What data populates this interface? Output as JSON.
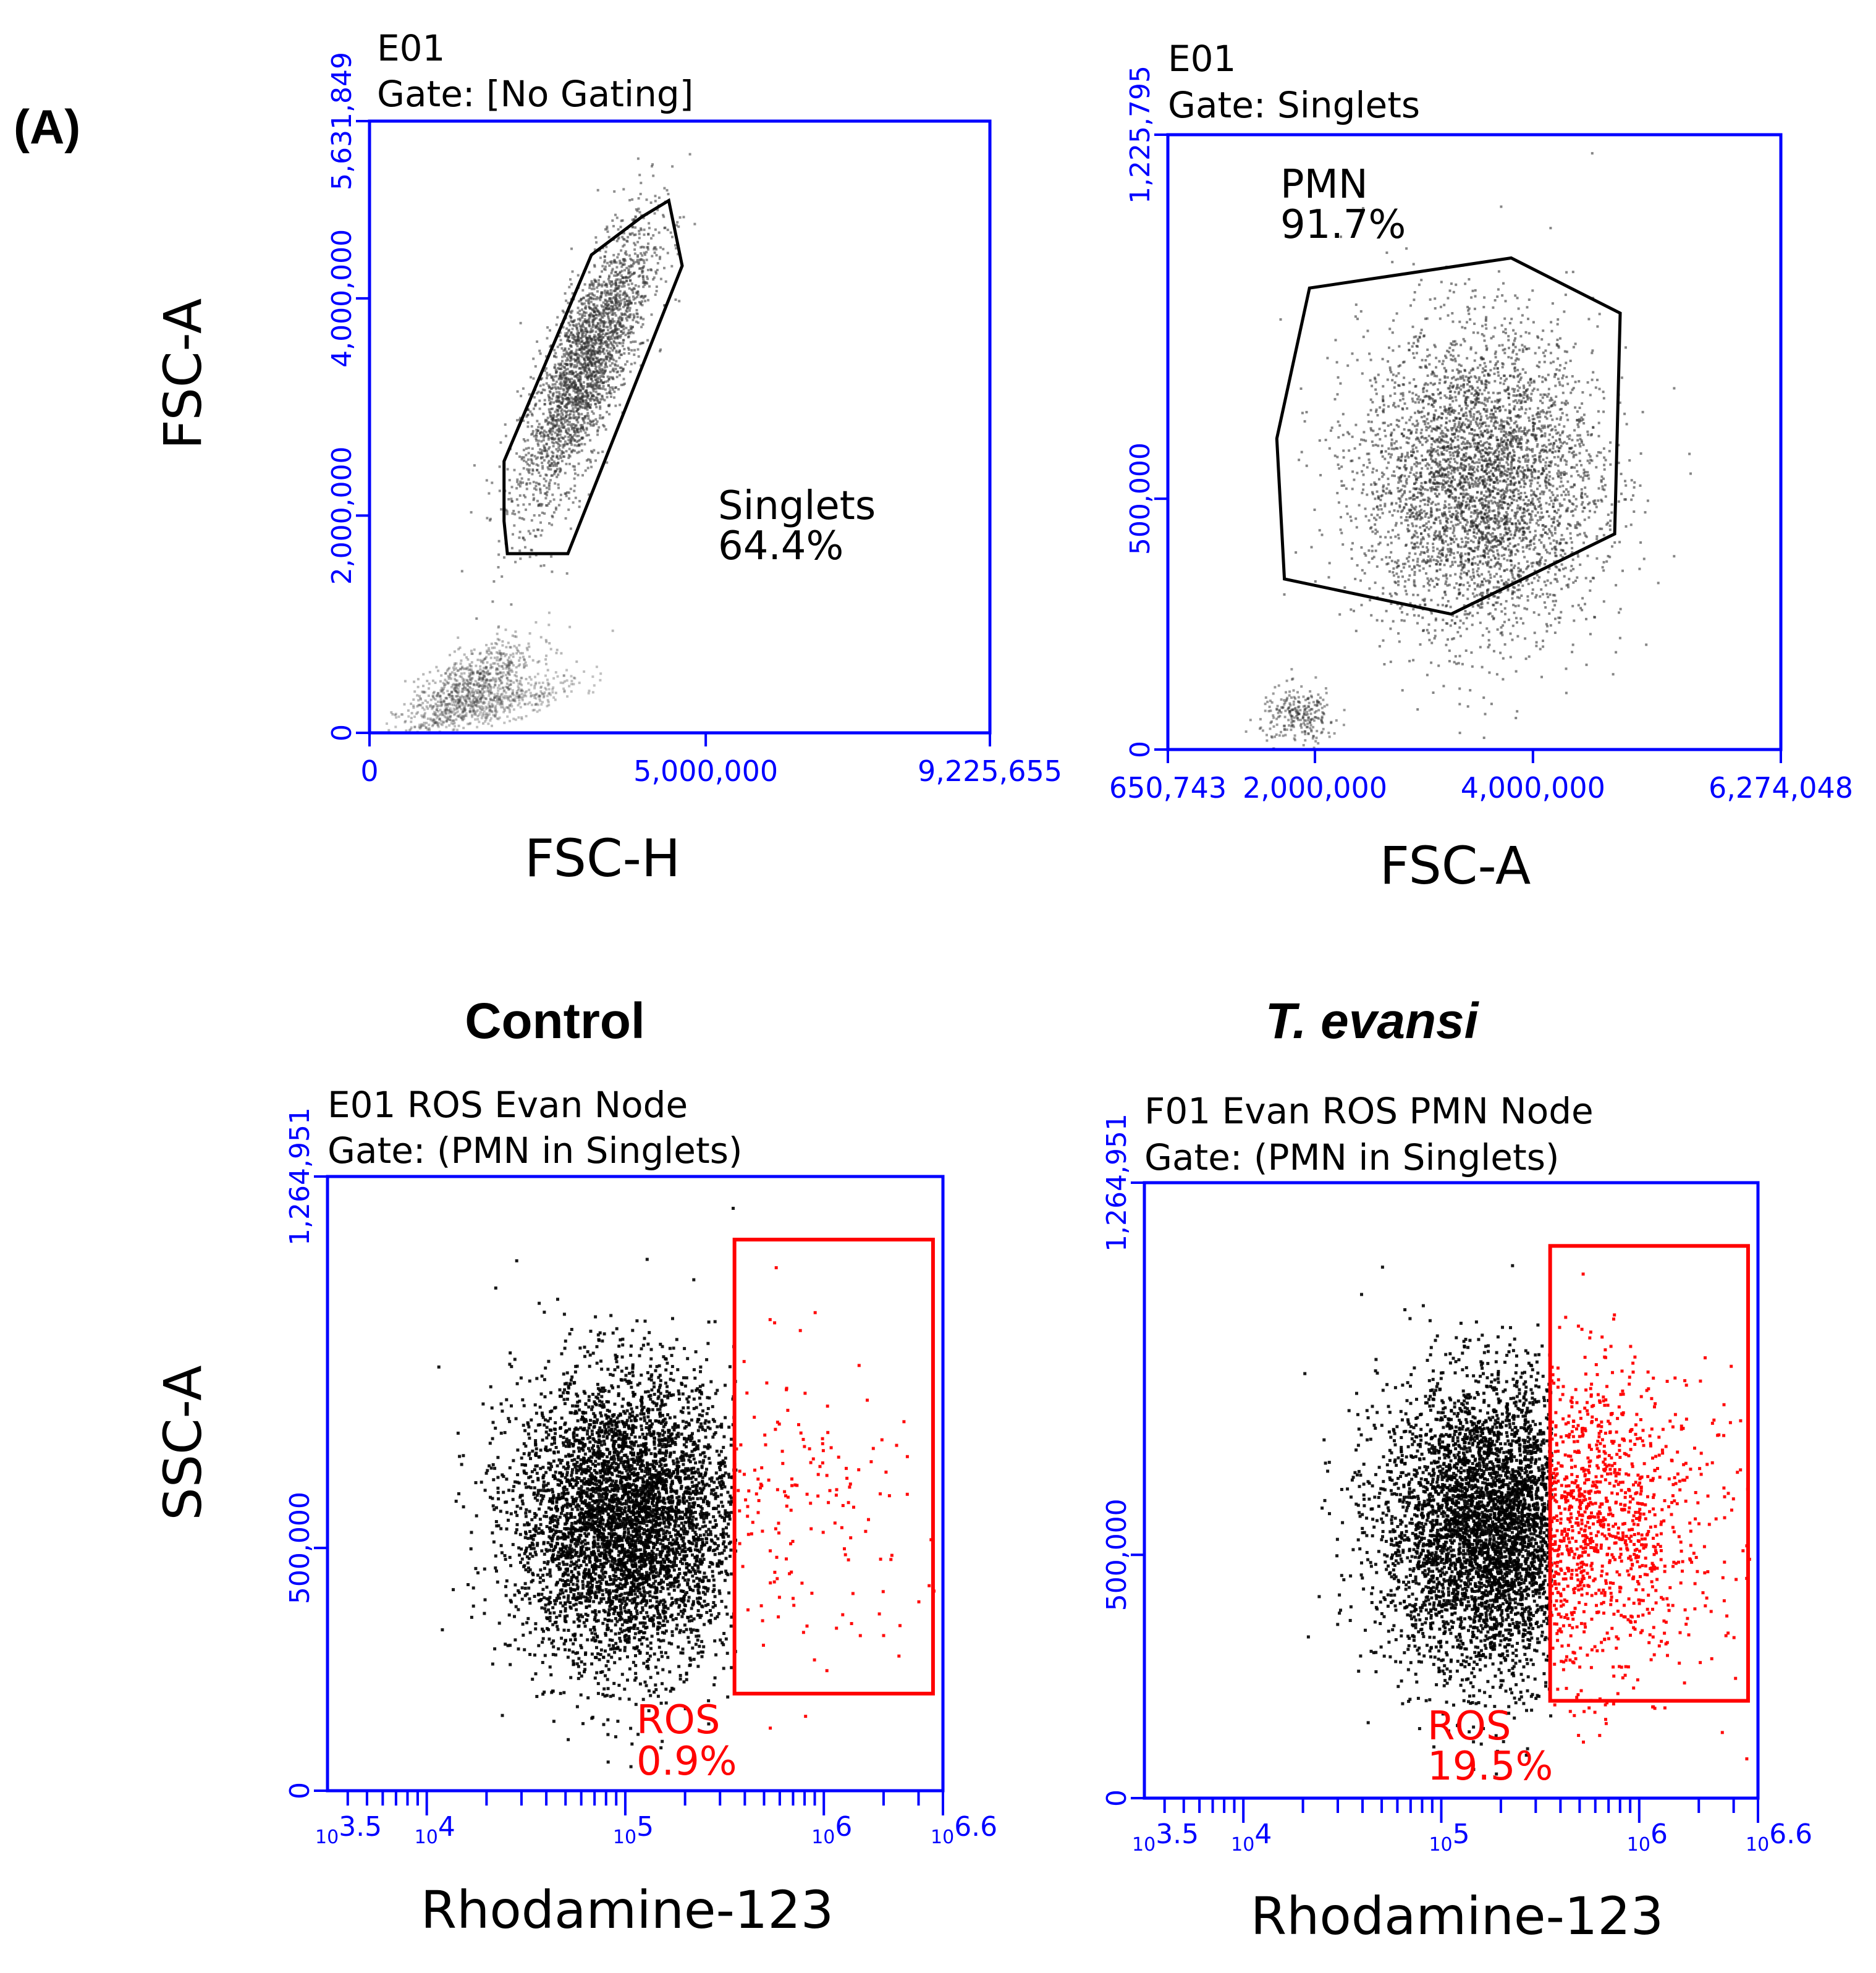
{
  "figure": {
    "panel_label": "(A)",
    "colors": {
      "axis": "#0000ff",
      "gate_black": "#000000",
      "gate_red": "#ff0000",
      "points_red": "#ff0000",
      "text": "#000000"
    }
  },
  "chart_data": [
    {
      "type": "scatter",
      "sample": "E01",
      "gate_text": "Gate: [No Gating]",
      "xlabel": "FSC-H",
      "ylabel": "FSC-A",
      "xlim": [
        0,
        9225655
      ],
      "ylim": [
        0,
        5631849
      ],
      "x_tick_labels": [
        "0",
        "5,000,000",
        "9,225,655"
      ],
      "y_tick_labels": [
        "0",
        "2,000,000",
        "4,000,000",
        "5,631,849"
      ],
      "gate": {
        "name": "Singlets",
        "percent": "64.4%",
        "polygon": [
          [
            4450000,
            4900000
          ],
          [
            4650000,
            4300000
          ],
          [
            2950000,
            1650000
          ],
          [
            2050000,
            1650000
          ],
          [
            2000000,
            1950000
          ],
          [
            2000000,
            2500000
          ],
          [
            3300000,
            4400000
          ],
          [
            4050000,
            4750000
          ]
        ]
      },
      "populations": [
        {
          "slope": 1.05,
          "x_center": 3200000,
          "x_spread": 1400000,
          "y_noise": 400000,
          "n": 2600,
          "opacity": 0.55
        },
        {
          "slope": 0.3,
          "x_center": 1500000,
          "x_spread": 1400000,
          "y_noise": 150000,
          "n": 700,
          "opacity": 0.35
        },
        {
          "slope": 0.15,
          "x_center": 1800000,
          "x_spread": 1800000,
          "y_noise": 80000,
          "n": 500,
          "opacity": 0.3
        }
      ]
    },
    {
      "type": "scatter",
      "sample": "E01",
      "gate_text": "Gate: Singlets",
      "xlabel": "FSC-A",
      "ylabel": "SSC-A",
      "xlim": [
        650743,
        6274048
      ],
      "ylim": [
        0,
        1225795
      ],
      "x_tick_labels": [
        "650,743",
        "2,000,000",
        "4,000,000",
        "6,274,048"
      ],
      "y_tick_labels": [
        "0",
        "500,000",
        "1,225,795"
      ],
      "gate": {
        "name": "PMN",
        "percent": "91.7%",
        "polygon": [
          [
            1950000,
            920000
          ],
          [
            3800000,
            980000
          ],
          [
            4800000,
            870000
          ],
          [
            4750000,
            430000
          ],
          [
            3250000,
            270000
          ],
          [
            1720000,
            340000
          ],
          [
            1650000,
            620000
          ]
        ]
      },
      "populations": [
        {
          "x_center": 3500000,
          "y_center": 540000,
          "x_spread": 900000,
          "y_spread": 190000,
          "n": 4200,
          "opacity": 0.55
        },
        {
          "x_center": 1850000,
          "y_center": 70000,
          "x_spread": 300000,
          "y_spread": 35000,
          "n": 250,
          "opacity": 0.45
        }
      ]
    },
    {
      "type": "scatter",
      "condition": "Control",
      "sample": "E01 ROS Evan Node",
      "gate_text": "Gate: (PMN in Singlets)",
      "xlabel": "Rhodamine-123",
      "ylabel": "SSC-A",
      "x_scale": "log10",
      "xlim_log10": [
        3.5,
        6.6
      ],
      "ylim": [
        0,
        1264951
      ],
      "x_tick_labels": [
        "10^3.5",
        "10^4",
        "10^5",
        "10^6",
        "10^6.6"
      ],
      "y_tick_labels": [
        "0",
        "500,000",
        "1,264,951"
      ],
      "gate": {
        "name": "ROS",
        "percent": "0.9%",
        "rect_log10_x": [
          5.55,
          6.55
        ],
        "rect_y": [
          200000,
          1135000
        ]
      },
      "populations": {
        "x_center_log10": 5.0,
        "y_center": 560000,
        "x_spread_log10": 0.28,
        "y_spread": 150000,
        "n": 5000
      },
      "ros_points": 160
    },
    {
      "type": "scatter",
      "condition": "T. evansi",
      "sample": "F01 Evan ROS PMN Node",
      "gate_text": "Gate: (PMN in Singlets)",
      "xlabel": "Rhodamine-123",
      "ylabel": "SSC-A",
      "x_scale": "log10",
      "xlim_log10": [
        3.5,
        6.6
      ],
      "ylim": [
        0,
        1264951
      ],
      "x_tick_labels": [
        "10^3.5",
        "10^4",
        "10^5",
        "10^6",
        "10^6.6"
      ],
      "y_tick_labels": [
        "0",
        "500,000",
        "1,264,951"
      ],
      "gate": {
        "name": "ROS",
        "percent": "19.5%",
        "rect_log10_x": [
          5.55,
          6.55
        ],
        "rect_y": [
          200000,
          1135000
        ]
      },
      "populations": {
        "x_center_log10": 5.25,
        "y_center": 560000,
        "x_spread_log10": 0.28,
        "y_spread": 150000,
        "n": 5000
      },
      "ros_points": 1100
    }
  ]
}
